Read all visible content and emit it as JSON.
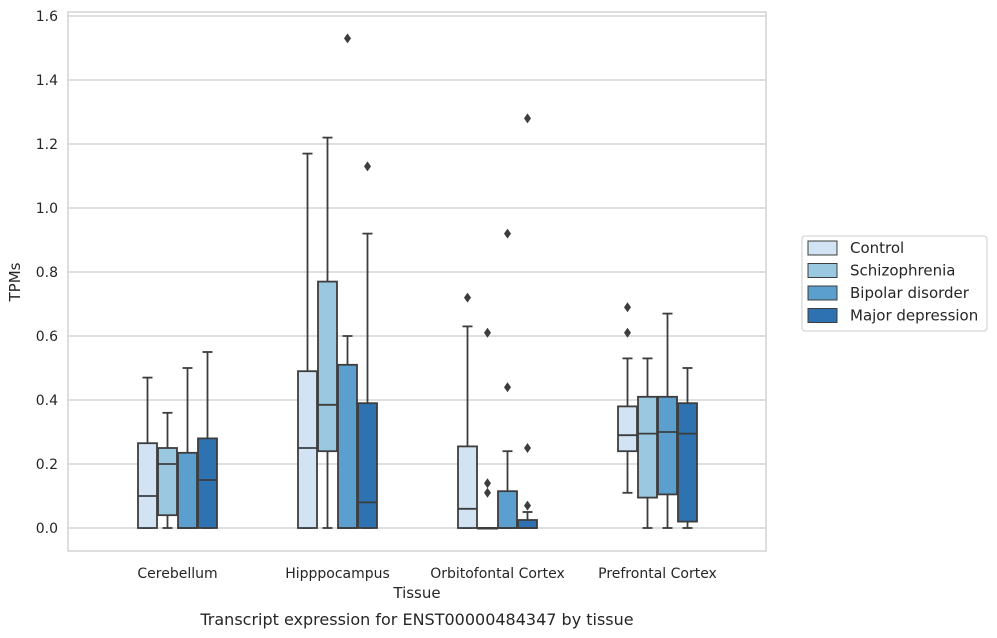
{
  "chart_data": {
    "type": "box",
    "title": "",
    "caption": "Transcript expression for ENST00000484347 by tissue",
    "xlabel": "Tissue",
    "ylabel": "TPMs",
    "ylim": [
      -0.07,
      1.61
    ],
    "yticks": [
      0.0,
      0.2,
      0.4,
      0.6,
      0.8,
      1.0,
      1.2,
      1.4,
      1.6
    ],
    "ytick_labels": [
      "0.0",
      "0.2",
      "0.4",
      "0.6",
      "0.8",
      "1.0",
      "1.2",
      "1.4",
      "1.6"
    ],
    "grid": "horizontal",
    "legend_position": "right",
    "categories": [
      "Cerebellum",
      "Hipppocampus",
      "Orbitofontal Cortex",
      "Prefrontal Cortex"
    ],
    "series": [
      {
        "name": "Control",
        "color": "#d2e3f3",
        "boxes": [
          {
            "min": 0.0,
            "q1": 0.0,
            "median": 0.1,
            "q3": 0.265,
            "max": 0.47,
            "outliers": []
          },
          {
            "min": 0.0,
            "q1": 0.0,
            "median": 0.25,
            "q3": 0.49,
            "max": 1.17,
            "outliers": []
          },
          {
            "min": 0.0,
            "q1": 0.0,
            "median": 0.06,
            "q3": 0.255,
            "max": 0.63,
            "outliers": [
              0.72
            ]
          },
          {
            "min": 0.11,
            "q1": 0.24,
            "median": 0.29,
            "q3": 0.38,
            "max": 0.53,
            "outliers": [
              0.61,
              0.69
            ]
          }
        ]
      },
      {
        "name": "Schizophrenia",
        "color": "#9ac8e0",
        "boxes": [
          {
            "min": 0.0,
            "q1": 0.04,
            "median": 0.2,
            "q3": 0.25,
            "max": 0.36,
            "outliers": []
          },
          {
            "min": 0.0,
            "q1": 0.24,
            "median": 0.385,
            "q3": 0.77,
            "max": 1.22,
            "outliers": []
          },
          {
            "min": 0.0,
            "q1": 0.0,
            "median": 0.0,
            "q3": 0.0,
            "max": 0.0,
            "outliers": [
              0.11,
              0.14,
              0.61
            ]
          },
          {
            "min": 0.0,
            "q1": 0.095,
            "median": 0.295,
            "q3": 0.41,
            "max": 0.53,
            "outliers": []
          }
        ]
      },
      {
        "name": "Bipolar disorder",
        "color": "#5a9fcd",
        "boxes": [
          {
            "min": 0.0,
            "q1": 0.0,
            "median": 0.0,
            "q3": 0.235,
            "max": 0.5,
            "outliers": []
          },
          {
            "min": 0.0,
            "q1": 0.0,
            "median": 0.0,
            "q3": 0.51,
            "max": 0.6,
            "outliers": [
              1.53
            ]
          },
          {
            "min": 0.0,
            "q1": 0.0,
            "median": 0.0,
            "q3": 0.115,
            "max": 0.24,
            "outliers": [
              0.44,
              0.92
            ]
          },
          {
            "min": 0.0,
            "q1": 0.105,
            "median": 0.3,
            "q3": 0.41,
            "max": 0.67,
            "outliers": []
          }
        ]
      },
      {
        "name": "Major depression",
        "color": "#2e72b1",
        "boxes": [
          {
            "min": 0.0,
            "q1": 0.0,
            "median": 0.15,
            "q3": 0.28,
            "max": 0.55,
            "outliers": []
          },
          {
            "min": 0.0,
            "q1": 0.0,
            "median": 0.08,
            "q3": 0.39,
            "max": 0.92,
            "outliers": [
              1.13
            ]
          },
          {
            "min": 0.0,
            "q1": 0.0,
            "median": 0.0,
            "q3": 0.025,
            "max": 0.05,
            "outliers": [
              0.07,
              0.25,
              1.28
            ]
          },
          {
            "min": 0.0,
            "q1": 0.02,
            "median": 0.295,
            "q3": 0.39,
            "max": 0.5,
            "outliers": []
          }
        ]
      }
    ]
  }
}
